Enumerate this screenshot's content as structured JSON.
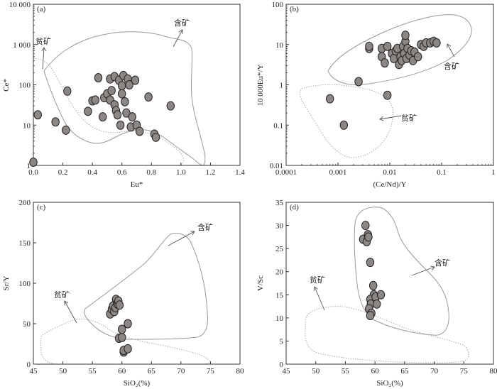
{
  "chart_data": [
    {
      "panel_label": "(a)",
      "type": "scatter",
      "xlabel": "Eu*",
      "ylabel": "Ce*",
      "xscale": "linear",
      "yscale": "log",
      "xlim": [
        0,
        1.4
      ],
      "ylim": [
        1,
        10000
      ],
      "xticks": [
        "0.0",
        "0.2",
        "0.4",
        "0.6",
        "0.8",
        "1.0",
        "1.2",
        "1.4"
      ],
      "yticks": [
        "1",
        "10",
        "100",
        "1 000",
        "10 000"
      ],
      "annotations": [
        {
          "text": "贫矿"
        },
        {
          "text": "含矿"
        }
      ],
      "points": [
        {
          "x": 0.0,
          "y": 1.2
        },
        {
          "x": 0.03,
          "y": 18
        },
        {
          "x": 0.15,
          "y": 12
        },
        {
          "x": 0.22,
          "y": 7.5
        },
        {
          "x": 0.23,
          "y": 70
        },
        {
          "x": 0.37,
          "y": 22
        },
        {
          "x": 0.4,
          "y": 40
        },
        {
          "x": 0.42,
          "y": 42
        },
        {
          "x": 0.44,
          "y": 150
        },
        {
          "x": 0.47,
          "y": 16
        },
        {
          "x": 0.48,
          "y": 48
        },
        {
          "x": 0.5,
          "y": 60
        },
        {
          "x": 0.52,
          "y": 42
        },
        {
          "x": 0.52,
          "y": 140
        },
        {
          "x": 0.53,
          "y": 72
        },
        {
          "x": 0.55,
          "y": 160
        },
        {
          "x": 0.55,
          "y": 32
        },
        {
          "x": 0.56,
          "y": 23
        },
        {
          "x": 0.57,
          "y": 18
        },
        {
          "x": 0.58,
          "y": 130
        },
        {
          "x": 0.59,
          "y": 10
        },
        {
          "x": 0.6,
          "y": 95
        },
        {
          "x": 0.6,
          "y": 60
        },
        {
          "x": 0.61,
          "y": 170
        },
        {
          "x": 0.62,
          "y": 38
        },
        {
          "x": 0.63,
          "y": 20
        },
        {
          "x": 0.64,
          "y": 140
        },
        {
          "x": 0.65,
          "y": 100
        },
        {
          "x": 0.66,
          "y": 9
        },
        {
          "x": 0.67,
          "y": 16
        },
        {
          "x": 0.69,
          "y": 130
        },
        {
          "x": 0.7,
          "y": 10
        },
        {
          "x": 0.72,
          "y": 7
        },
        {
          "x": 0.78,
          "y": 50
        },
        {
          "x": 0.82,
          "y": 6
        },
        {
          "x": 0.83,
          "y": 5
        },
        {
          "x": 0.93,
          "y": 30
        }
      ]
    },
    {
      "panel_label": "(b)",
      "type": "scatter",
      "xlabel": "(Ce/Nd)/Y",
      "ylabel": "10 000Eu*/Y",
      "xscale": "log",
      "yscale": "log",
      "xlim": [
        0.0001,
        1
      ],
      "ylim": [
        0.01,
        100
      ],
      "xticks": [
        "0.0001",
        "0.001",
        "0.01",
        "0.1",
        "1"
      ],
      "yticks": [
        "0.01",
        "0.1",
        "1",
        "10",
        "100"
      ],
      "annotations": [
        {
          "text": "含矿"
        },
        {
          "text": "贫矿"
        }
      ],
      "points": [
        {
          "x": 0.0007,
          "y": 0.45
        },
        {
          "x": 0.0013,
          "y": 0.1
        },
        {
          "x": 0.0025,
          "y": 1.2
        },
        {
          "x": 0.004,
          "y": 8
        },
        {
          "x": 0.004,
          "y": 9
        },
        {
          "x": 0.009,
          "y": 0.55
        },
        {
          "x": 0.007,
          "y": 8
        },
        {
          "x": 0.007,
          "y": 5
        },
        {
          "x": 0.008,
          "y": 3.5
        },
        {
          "x": 0.009,
          "y": 9
        },
        {
          "x": 0.011,
          "y": 6
        },
        {
          "x": 0.012,
          "y": 4.5
        },
        {
          "x": 0.013,
          "y": 7
        },
        {
          "x": 0.014,
          "y": 8
        },
        {
          "x": 0.015,
          "y": 3.2
        },
        {
          "x": 0.016,
          "y": 5
        },
        {
          "x": 0.017,
          "y": 4
        },
        {
          "x": 0.018,
          "y": 9
        },
        {
          "x": 0.019,
          "y": 6
        },
        {
          "x": 0.02,
          "y": 12
        },
        {
          "x": 0.02,
          "y": 17
        },
        {
          "x": 0.021,
          "y": 4.5
        },
        {
          "x": 0.022,
          "y": 8
        },
        {
          "x": 0.024,
          "y": 5.5
        },
        {
          "x": 0.026,
          "y": 7
        },
        {
          "x": 0.028,
          "y": 4
        },
        {
          "x": 0.03,
          "y": 6.5
        },
        {
          "x": 0.035,
          "y": 5
        },
        {
          "x": 0.04,
          "y": 10
        },
        {
          "x": 0.045,
          "y": 9
        },
        {
          "x": 0.05,
          "y": 11
        },
        {
          "x": 0.06,
          "y": 11
        },
        {
          "x": 0.07,
          "y": 12
        },
        {
          "x": 0.08,
          "y": 11
        }
      ]
    },
    {
      "panel_label": "(c)",
      "type": "scatter",
      "xlabel": "SiO₂(%)",
      "ylabel": "Sr/Y",
      "xscale": "linear",
      "yscale": "linear",
      "xlim": [
        45,
        80
      ],
      "ylim": [
        0,
        200
      ],
      "xticks": [
        "45",
        "50",
        "55",
        "60",
        "65",
        "70",
        "75",
        "80"
      ],
      "yticks": [
        "0",
        "50",
        "100",
        "150",
        "200"
      ],
      "annotations": [
        {
          "text": "贫矿"
        },
        {
          "text": "含矿"
        }
      ],
      "points": [
        {
          "x": 58.0,
          "y": 62
        },
        {
          "x": 58.3,
          "y": 68
        },
        {
          "x": 58.5,
          "y": 72
        },
        {
          "x": 58.7,
          "y": 65
        },
        {
          "x": 58.9,
          "y": 70
        },
        {
          "x": 59.0,
          "y": 80
        },
        {
          "x": 59.2,
          "y": 75
        },
        {
          "x": 59.3,
          "y": 74
        },
        {
          "x": 59.4,
          "y": 78
        },
        {
          "x": 59.6,
          "y": 73
        },
        {
          "x": 59.5,
          "y": 32
        },
        {
          "x": 60.0,
          "y": 33
        },
        {
          "x": 60.0,
          "y": 43
        },
        {
          "x": 60.3,
          "y": 15
        },
        {
          "x": 60.3,
          "y": 17
        },
        {
          "x": 61.0,
          "y": 50
        },
        {
          "x": 61.0,
          "y": 19
        }
      ]
    },
    {
      "panel_label": "(d)",
      "type": "scatter",
      "xlabel": "SiO₂(%)",
      "ylabel": "V/Sc",
      "xscale": "linear",
      "yscale": "linear",
      "xlim": [
        45,
        80
      ],
      "ylim": [
        0,
        35
      ],
      "xticks": [
        "45",
        "50",
        "55",
        "60",
        "65",
        "70",
        "75",
        "80"
      ],
      "yticks": [
        "0",
        "5",
        "10",
        "15",
        "20",
        "25",
        "30",
        "35"
      ],
      "annotations": [
        {
          "text": "贫矿"
        },
        {
          "text": "含矿"
        }
      ],
      "points": [
        {
          "x": 58.0,
          "y": 27
        },
        {
          "x": 58.4,
          "y": 30
        },
        {
          "x": 58.6,
          "y": 26.5
        },
        {
          "x": 58.8,
          "y": 28
        },
        {
          "x": 58.9,
          "y": 27.5
        },
        {
          "x": 59.2,
          "y": 22
        },
        {
          "x": 59.7,
          "y": 17
        },
        {
          "x": 59.8,
          "y": 15
        },
        {
          "x": 60.0,
          "y": 14
        },
        {
          "x": 59.2,
          "y": 14
        },
        {
          "x": 59.3,
          "y": 13
        },
        {
          "x": 59.0,
          "y": 12
        },
        {
          "x": 60.1,
          "y": 14.5
        },
        {
          "x": 61.0,
          "y": 15
        },
        {
          "x": 60.3,
          "y": 13
        },
        {
          "x": 59.4,
          "y": 11
        },
        {
          "x": 59.2,
          "y": 10.5
        }
      ]
    }
  ]
}
